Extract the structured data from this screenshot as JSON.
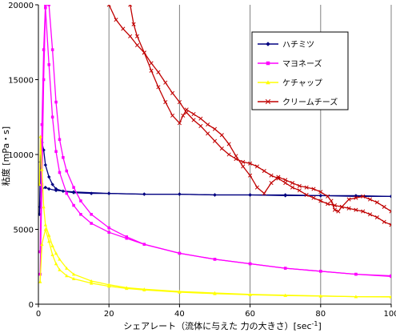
{
  "chart_data": {
    "type": "line",
    "title": "",
    "xlabel": "シェアレート（流体に与えた 力の大きさ）[sec",
    "xlabel_suffix": "]",
    "xlabel_superscript": "-1",
    "ylabel": "粘度 [mPa・s]",
    "xlim": [
      0,
      100
    ],
    "ylim": [
      0,
      20000
    ],
    "x_ticks": [
      0,
      20,
      40,
      60,
      80,
      100
    ],
    "y_ticks": [
      0,
      5000,
      10000,
      15000,
      20000
    ],
    "grid": "vertical",
    "legend_position": "top-right",
    "series": [
      {
        "name": "ハチミツ",
        "color": "#000080",
        "marker": "diamond",
        "points": [
          [
            0.3,
            6000
          ],
          [
            0.6,
            9500
          ],
          [
            1,
            10800
          ],
          [
            1.5,
            10300
          ],
          [
            2,
            9300
          ],
          [
            3,
            8500
          ],
          [
            4,
            8000
          ],
          [
            5,
            7700
          ],
          [
            7,
            7550
          ],
          [
            10,
            7450
          ],
          [
            15,
            7400
          ],
          [
            20,
            7400
          ],
          [
            30,
            7350
          ],
          [
            40,
            7350
          ],
          [
            50,
            7300
          ],
          [
            60,
            7300
          ],
          [
            70,
            7250
          ],
          [
            80,
            7250
          ],
          [
            90,
            7200
          ],
          [
            100,
            7200
          ]
        ],
        "points_return": [
          [
            100,
            7200
          ],
          [
            90,
            7250
          ],
          [
            80,
            7250
          ],
          [
            70,
            7300
          ],
          [
            60,
            7300
          ],
          [
            50,
            7300
          ],
          [
            40,
            7350
          ],
          [
            30,
            7350
          ],
          [
            20,
            7400
          ],
          [
            10,
            7500
          ],
          [
            5,
            7600
          ],
          [
            3,
            7700
          ],
          [
            2,
            7800
          ],
          [
            1,
            7700
          ],
          [
            0.5,
            6500
          ]
        ]
      },
      {
        "name": "マヨネーズ",
        "color": "#ff00ff",
        "marker": "square",
        "points": [
          [
            0.5,
            3500
          ],
          [
            1,
            12000
          ],
          [
            1.5,
            17000
          ],
          [
            2,
            20000
          ],
          [
            3,
            20000
          ],
          [
            4,
            17000
          ],
          [
            5,
            13500
          ],
          [
            6,
            11000
          ],
          [
            7,
            9800
          ],
          [
            8,
            8900
          ],
          [
            10,
            7800
          ],
          [
            12,
            6900
          ],
          [
            15,
            6000
          ],
          [
            20,
            5100
          ],
          [
            25,
            4500
          ],
          [
            30,
            4000
          ],
          [
            40,
            3400
          ],
          [
            50,
            3000
          ],
          [
            60,
            2700
          ],
          [
            70,
            2400
          ],
          [
            80,
            2200
          ],
          [
            90,
            2000
          ],
          [
            100,
            1900
          ]
        ],
        "points_return": [
          [
            100,
            1850
          ],
          [
            90,
            2000
          ],
          [
            80,
            2200
          ],
          [
            70,
            2400
          ],
          [
            60,
            2700
          ],
          [
            50,
            3000
          ],
          [
            40,
            3400
          ],
          [
            30,
            4000
          ],
          [
            25,
            4400
          ],
          [
            20,
            4800
          ],
          [
            15,
            5400
          ],
          [
            12,
            6000
          ],
          [
            10,
            6600
          ],
          [
            8,
            7400
          ],
          [
            6,
            8800
          ],
          [
            5,
            10200
          ],
          [
            4,
            12500
          ],
          [
            3,
            16000
          ],
          [
            2,
            19800
          ],
          [
            1.5,
            15000
          ],
          [
            1,
            8000
          ],
          [
            0.5,
            2000
          ]
        ]
      },
      {
        "name": "ケチャップ",
        "color": "#ffff00",
        "marker": "triangle",
        "points": [
          [
            0.3,
            8000
          ],
          [
            0.6,
            11200
          ],
          [
            1,
            9000
          ],
          [
            1.5,
            6500
          ],
          [
            2,
            5300
          ],
          [
            3,
            4600
          ],
          [
            4,
            3900
          ],
          [
            5,
            3400
          ],
          [
            6,
            3000
          ],
          [
            8,
            2400
          ],
          [
            10,
            2000
          ],
          [
            15,
            1550
          ],
          [
            20,
            1300
          ],
          [
            25,
            1100
          ],
          [
            30,
            1000
          ],
          [
            40,
            850
          ],
          [
            50,
            750
          ],
          [
            60,
            650
          ],
          [
            70,
            600
          ],
          [
            80,
            550
          ],
          [
            90,
            500
          ],
          [
            100,
            500
          ]
        ],
        "points_return": [
          [
            100,
            480
          ],
          [
            90,
            500
          ],
          [
            80,
            540
          ],
          [
            70,
            580
          ],
          [
            60,
            630
          ],
          [
            50,
            700
          ],
          [
            40,
            800
          ],
          [
            30,
            950
          ],
          [
            25,
            1050
          ],
          [
            20,
            1200
          ],
          [
            15,
            1400
          ],
          [
            10,
            1700
          ],
          [
            8,
            1900
          ],
          [
            6,
            2300
          ],
          [
            5,
            2700
          ],
          [
            4,
            3300
          ],
          [
            3,
            4200
          ],
          [
            2,
            5000
          ],
          [
            1,
            4000
          ],
          [
            0.5,
            1500
          ]
        ]
      },
      {
        "name": "クリームチーズ",
        "color": "#c00000",
        "marker": "cross",
        "points": [
          [
            20,
            20000
          ],
          [
            22,
            19000
          ],
          [
            24,
            18400
          ],
          [
            26,
            17900
          ],
          [
            28,
            17300
          ],
          [
            30,
            16800
          ],
          [
            32,
            16100
          ],
          [
            34,
            15500
          ],
          [
            36,
            14800
          ],
          [
            38,
            14100
          ],
          [
            40,
            13500
          ],
          [
            42,
            12800
          ],
          [
            44,
            12300
          ],
          [
            46,
            11900
          ],
          [
            48,
            11400
          ],
          [
            50,
            10900
          ],
          [
            52,
            10400
          ],
          [
            54,
            10000
          ],
          [
            56,
            9700
          ],
          [
            58,
            9500
          ],
          [
            60,
            9400
          ],
          [
            62,
            9200
          ],
          [
            64,
            8900
          ],
          [
            66,
            8600
          ],
          [
            68,
            8400
          ],
          [
            70,
            8100
          ],
          [
            72,
            7800
          ],
          [
            74,
            7600
          ],
          [
            76,
            7300
          ],
          [
            78,
            7100
          ],
          [
            80,
            6900
          ],
          [
            82,
            6700
          ],
          [
            84,
            6600
          ],
          [
            86,
            6500
          ],
          [
            88,
            6400
          ],
          [
            90,
            6300
          ],
          [
            92,
            6200
          ],
          [
            94,
            6000
          ],
          [
            96,
            5800
          ],
          [
            98,
            5500
          ],
          [
            100,
            5300
          ]
        ],
        "points_return": [
          [
            100,
            6200
          ],
          [
            98,
            6500
          ],
          [
            96,
            6800
          ],
          [
            94,
            7000
          ],
          [
            92,
            7200
          ],
          [
            90,
            7100
          ],
          [
            88,
            7000
          ],
          [
            86,
            6500
          ],
          [
            85,
            6200
          ],
          [
            84,
            6300
          ],
          [
            83,
            6900
          ],
          [
            82,
            7200
          ],
          [
            80,
            7500
          ],
          [
            78,
            7700
          ],
          [
            76,
            7800
          ],
          [
            74,
            7900
          ],
          [
            72,
            8100
          ],
          [
            70,
            8300
          ],
          [
            68,
            8500
          ],
          [
            66,
            8100
          ],
          [
            64,
            7400
          ],
          [
            62,
            7800
          ],
          [
            60,
            8600
          ],
          [
            58,
            9200
          ],
          [
            56,
            9900
          ],
          [
            54,
            10700
          ],
          [
            52,
            11300
          ],
          [
            50,
            11700
          ],
          [
            48,
            12000
          ],
          [
            46,
            12400
          ],
          [
            44,
            12700
          ],
          [
            42,
            13000
          ],
          [
            41,
            12600
          ],
          [
            40,
            12100
          ],
          [
            38,
            12600
          ],
          [
            36,
            13500
          ],
          [
            34,
            14500
          ],
          [
            32,
            15600
          ],
          [
            30,
            16800
          ],
          [
            28,
            17900
          ],
          [
            27,
            18700
          ],
          [
            26,
            20000
          ]
        ]
      }
    ]
  }
}
